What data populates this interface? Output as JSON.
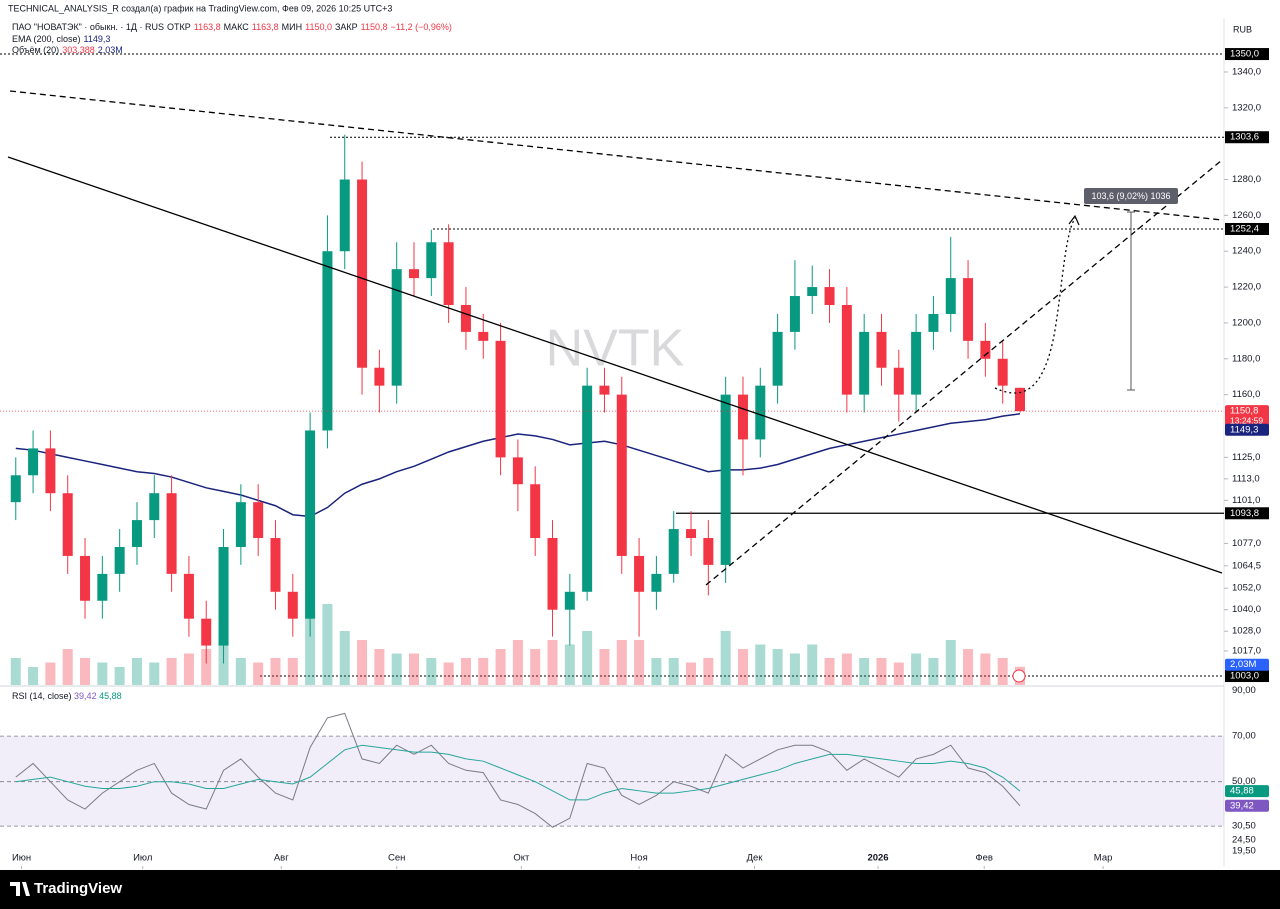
{
  "chart_data": [
    {
      "type": "candlestick",
      "attribution": "TECHNICAL_ANALYSIS_R создал(а) график на TradingView.com, Фев 09, 2026 10:25 UTC+3",
      "currency": "RUB",
      "watermark": "NVTK",
      "legend": {
        "symbol": "ПАО \"НОВАТЭК\" · обыкн. · 1Д · RUS",
        "open_label": "ОТКР",
        "open": "1163,8",
        "high_label": "МАКС",
        "high": "1163,8",
        "low_label": "МИН",
        "low": "1150,0",
        "close_label": "ЗАКР",
        "close": "1150,8",
        "change": "−11,2 (−0,96%)",
        "ema_label": "EMA (200, close)",
        "ema": "1149,3",
        "volume_label": "Объём (20)",
        "volume_ma": "303,388",
        "volume": "2,03M"
      },
      "measure_label": "103,6 (9,02%) 1036",
      "x": [
        1,
        4,
        7,
        10,
        13,
        16,
        19,
        22,
        25,
        28,
        31,
        34,
        37,
        40,
        43,
        46,
        49,
        52,
        55,
        58,
        61,
        64,
        67,
        70,
        73,
        76,
        79,
        82,
        85,
        88,
        91,
        94,
        97,
        100,
        103,
        106,
        109,
        112,
        115,
        118,
        121,
        124,
        127,
        130,
        133,
        136,
        139,
        142,
        145,
        148,
        151,
        154,
        157,
        160,
        163,
        166,
        169,
        172,
        175
      ],
      "open": [
        1100,
        1115,
        1130,
        1105,
        1070,
        1045,
        1060,
        1075,
        1090,
        1105,
        1060,
        1035,
        1020,
        1075,
        1100,
        1080,
        1050,
        1035,
        1140,
        1240,
        1280,
        1175,
        1165,
        1230,
        1225,
        1245,
        1210,
        1195,
        1190,
        1125,
        1110,
        1080,
        1040,
        1050,
        1165,
        1160,
        1070,
        1050,
        1060,
        1085,
        1080,
        1065,
        1160,
        1135,
        1165,
        1195,
        1215,
        1220,
        1210,
        1160,
        1195,
        1175,
        1160,
        1195,
        1205,
        1225,
        1190,
        1180,
        1163.8
      ],
      "high": [
        1125,
        1140,
        1140,
        1115,
        1080,
        1070,
        1085,
        1100,
        1115,
        1115,
        1070,
        1045,
        1085,
        1110,
        1110,
        1090,
        1060,
        1150,
        1260,
        1305,
        1290,
        1185,
        1245,
        1245,
        1252,
        1255,
        1220,
        1205,
        1200,
        1135,
        1120,
        1090,
        1060,
        1175,
        1175,
        1170,
        1080,
        1070,
        1095,
        1095,
        1090,
        1170,
        1170,
        1175,
        1205,
        1235,
        1232,
        1230,
        1220,
        1205,
        1205,
        1185,
        1205,
        1215,
        1248,
        1235,
        1200,
        1190,
        1163.8
      ],
      "low": [
        1090,
        1105,
        1095,
        1060,
        1035,
        1035,
        1050,
        1065,
        1080,
        1050,
        1025,
        1010,
        1010,
        1065,
        1070,
        1040,
        1025,
        1025,
        1130,
        1230,
        1160,
        1150,
        1155,
        1215,
        1215,
        1200,
        1185,
        1180,
        1115,
        1095,
        1070,
        1025,
        1020,
        1045,
        1150,
        1060,
        1025,
        1040,
        1055,
        1070,
        1048,
        1055,
        1115,
        1125,
        1155,
        1185,
        1205,
        1200,
        1150,
        1150,
        1165,
        1145,
        1150,
        1185,
        1195,
        1180,
        1170,
        1155,
        1150
      ],
      "close": [
        1115,
        1130,
        1105,
        1070,
        1045,
        1060,
        1075,
        1090,
        1105,
        1060,
        1035,
        1020,
        1075,
        1100,
        1080,
        1050,
        1035,
        1140,
        1240,
        1280,
        1175,
        1165,
        1230,
        1225,
        1245,
        1210,
        1195,
        1190,
        1125,
        1110,
        1080,
        1040,
        1050,
        1165,
        1160,
        1070,
        1050,
        1060,
        1085,
        1080,
        1065,
        1160,
        1135,
        1165,
        1195,
        1215,
        1220,
        1210,
        1160,
        1195,
        1175,
        1160,
        1195,
        1205,
        1225,
        1190,
        1180,
        1165,
        1150.8
      ],
      "up_color": "#089981",
      "down_color": "#f23645",
      "series": [
        {
          "name": "EMA (200, close)",
          "color": "#1a237e",
          "values": [
            1130,
            1129,
            1127,
            1125,
            1123,
            1121,
            1119,
            1117,
            1116,
            1114,
            1111,
            1108,
            1106,
            1104,
            1101,
            1098,
            1093,
            1092,
            1097,
            1105,
            1110,
            1113,
            1117,
            1120,
            1124,
            1128,
            1131,
            1134,
            1136,
            1138,
            1137,
            1135,
            1132,
            1133,
            1134,
            1132,
            1129,
            1126,
            1123,
            1120,
            1117,
            1118,
            1118,
            1119,
            1121,
            1124,
            1127,
            1130,
            1132,
            1134,
            1136,
            1138,
            1140,
            1142,
            1144,
            1145,
            1146,
            1148,
            1149.3
          ]
        }
      ],
      "volume": [
        3,
        2,
        2.5,
        4,
        3,
        2.5,
        2,
        3,
        2.5,
        3,
        3.5,
        4,
        5,
        3,
        2.5,
        3,
        3,
        8,
        9,
        6,
        5,
        4,
        3.5,
        3.5,
        3,
        2.5,
        3,
        3,
        4,
        5,
        4,
        5,
        4.5,
        6,
        4,
        5,
        5,
        3,
        3,
        2.5,
        3,
        6,
        4,
        4.5,
        4,
        3.5,
        4.5,
        3,
        3.5,
        3,
        3,
        2.5,
        3.5,
        3,
        5,
        4,
        3.5,
        3,
        2.03
      ],
      "volume_ylim": [
        0,
        10
      ],
      "volume_up_color": "rgba(8,153,129,0.35)",
      "volume_down_color": "rgba(242,54,69,0.35)",
      "xlim": [
        0,
        210
      ],
      "xticks": [
        {
          "value": 2,
          "label": "Июн"
        },
        {
          "value": 23,
          "label": "Июл"
        },
        {
          "value": 47,
          "label": "Авг"
        },
        {
          "value": 67,
          "label": "Сен"
        },
        {
          "value": 88.6,
          "label": "Окт"
        },
        {
          "value": 109,
          "label": "Ноя"
        },
        {
          "value": 129,
          "label": "Дек"
        },
        {
          "value": 150.4,
          "label": "2026"
        },
        {
          "value": 168.8,
          "label": "Фев"
        },
        {
          "value": 189.4,
          "label": "Мар"
        }
      ],
      "ylim": [
        998,
        1369
      ],
      "yticks": [
        {
          "value": 1340,
          "label": "1340,0"
        },
        {
          "value": 1320,
          "label": "1320,0"
        },
        {
          "value": 1280,
          "label": "1280,0"
        },
        {
          "value": 1260,
          "label": "1260,0"
        },
        {
          "value": 1240,
          "label": "1240,0"
        },
        {
          "value": 1220,
          "label": "1220,0"
        },
        {
          "value": 1200,
          "label": "1200,0"
        },
        {
          "value": 1180,
          "label": "1180,0"
        },
        {
          "value": 1160,
          "label": "1160,0"
        },
        {
          "value": 1125,
          "label": "1125,0"
        },
        {
          "value": 1113,
          "label": "1113,0"
        },
        {
          "value": 1101,
          "label": "1101,0"
        },
        {
          "value": 1077,
          "label": "1077,0"
        },
        {
          "value": 1064.5,
          "label": "1064,5"
        },
        {
          "value": 1052,
          "label": "1052,0"
        },
        {
          "value": 1040,
          "label": "1040,0"
        },
        {
          "value": 1028,
          "label": "1028,0"
        },
        {
          "value": 1017,
          "label": "1017,0"
        }
      ],
      "levels": [
        {
          "value": 1350,
          "label": "1350,0"
        },
        {
          "value": 1303.6,
          "label": "1303,6"
        },
        {
          "value": 1252.4,
          "label": "1252,4"
        },
        {
          "value": 1093.8,
          "label": "1093,8"
        },
        {
          "value": 1003,
          "label": "1003,0"
        }
      ],
      "price_tag": {
        "value": 1150.8,
        "label": "1150,8",
        "countdown": "13:24:59",
        "color": "#f23645"
      },
      "ema_tag": {
        "value": 1149.3,
        "label": "1149,3",
        "color": "#1a237e"
      },
      "volume_tag": {
        "value": 2.03,
        "label": "2,03M",
        "color": "#2962ff"
      }
    },
    {
      "type": "line",
      "title": "RSI (14, close)",
      "legend_values": [
        "39,42",
        "45,88"
      ],
      "x": [
        1,
        4,
        7,
        10,
        13,
        16,
        19,
        22,
        25,
        28,
        31,
        34,
        37,
        40,
        43,
        46,
        49,
        52,
        55,
        58,
        61,
        64,
        67,
        70,
        73,
        76,
        79,
        82,
        85,
        88,
        91,
        94,
        97,
        100,
        103,
        106,
        109,
        112,
        115,
        118,
        121,
        124,
        127,
        130,
        133,
        136,
        139,
        142,
        145,
        148,
        151,
        154,
        157,
        160,
        163,
        166,
        169,
        172,
        175
      ],
      "series": [
        {
          "name": "RSI",
          "color": "#787b86",
          "values": [
            52,
            58,
            50,
            42,
            38,
            45,
            50,
            55,
            58,
            45,
            40,
            38,
            55,
            60,
            52,
            45,
            42,
            65,
            78,
            80,
            60,
            58,
            66,
            62,
            66,
            58,
            55,
            54,
            42,
            40,
            36,
            30,
            34,
            58,
            56,
            44,
            40,
            44,
            50,
            48,
            45,
            62,
            56,
            60,
            64,
            66,
            66,
            63,
            55,
            60,
            56,
            52,
            60,
            62,
            66,
            56,
            54,
            48,
            39.42
          ],
          "tag": {
            "value": 39.42,
            "label": "39,42"
          },
          "tag_color": "#7e57c2"
        },
        {
          "name": "RSI MA",
          "color": "#26a69a",
          "values": [
            50,
            51,
            52,
            50,
            48,
            47,
            47,
            48,
            50,
            50,
            49,
            47,
            47,
            49,
            51,
            50,
            49,
            52,
            58,
            64,
            66,
            65,
            64,
            63,
            63,
            62,
            60,
            59,
            56,
            53,
            50,
            46,
            42,
            42,
            45,
            47,
            46,
            45,
            45,
            46,
            47,
            49,
            51,
            53,
            55,
            58,
            60,
            62,
            62,
            61,
            60,
            59,
            58,
            58,
            59,
            58,
            56,
            52,
            45.88
          ],
          "tag": {
            "value": 45.88,
            "label": "45,88"
          },
          "tag_color": "#089981"
        }
      ],
      "xlim": [
        0,
        210
      ],
      "ylim": [
        13,
        92
      ],
      "band": [
        30.5,
        70
      ],
      "yticks": [
        {
          "value": 90,
          "label": "90,00"
        },
        {
          "value": 70,
          "label": "70,00"
        },
        {
          "value": 50,
          "label": "50,00"
        },
        {
          "value": 30.5,
          "label": "30,50"
        },
        {
          "value": 24.5,
          "label": "24,50"
        },
        {
          "value": 19.5,
          "label": "19,50"
        }
      ]
    }
  ]
}
